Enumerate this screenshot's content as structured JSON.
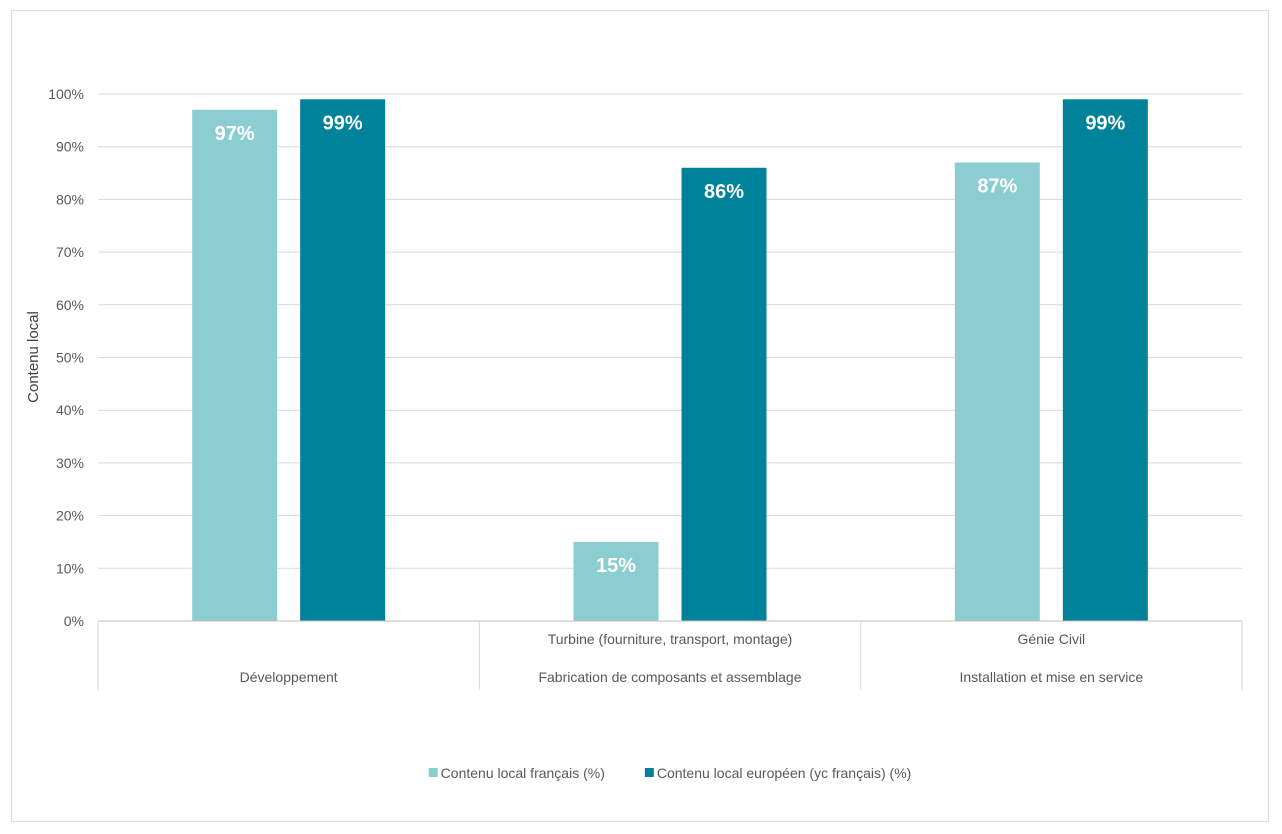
{
  "chart_data": {
    "type": "bar",
    "ylabel": "Contenu local",
    "ylim": [
      0,
      100
    ],
    "y_ticks": [
      0,
      10,
      20,
      30,
      40,
      50,
      60,
      70,
      80,
      90,
      100
    ],
    "y_tick_labels": [
      "0%",
      "10%",
      "20%",
      "30%",
      "40%",
      "50%",
      "60%",
      "70%",
      "80%",
      "90%",
      "100%"
    ],
    "grid": true,
    "legend": "bottom",
    "categories": [
      {
        "sub": "",
        "group": "Développement"
      },
      {
        "sub": "Turbine (fourniture, transport, montage)",
        "group": "Fabrication de composants et assemblage"
      },
      {
        "sub": "Génie Civil",
        "group": "Installation et mise en service"
      }
    ],
    "series": [
      {
        "name": "Contenu local français (%)",
        "color": "#8ccdd1",
        "values": [
          97,
          15,
          87
        ],
        "labels": [
          "97%",
          "15%",
          "87%"
        ]
      },
      {
        "name": "Contenu local européen (yc français) (%)",
        "color": "#00839a",
        "values": [
          99,
          86,
          99
        ],
        "labels": [
          "99%",
          "86%",
          "99%"
        ]
      }
    ]
  }
}
